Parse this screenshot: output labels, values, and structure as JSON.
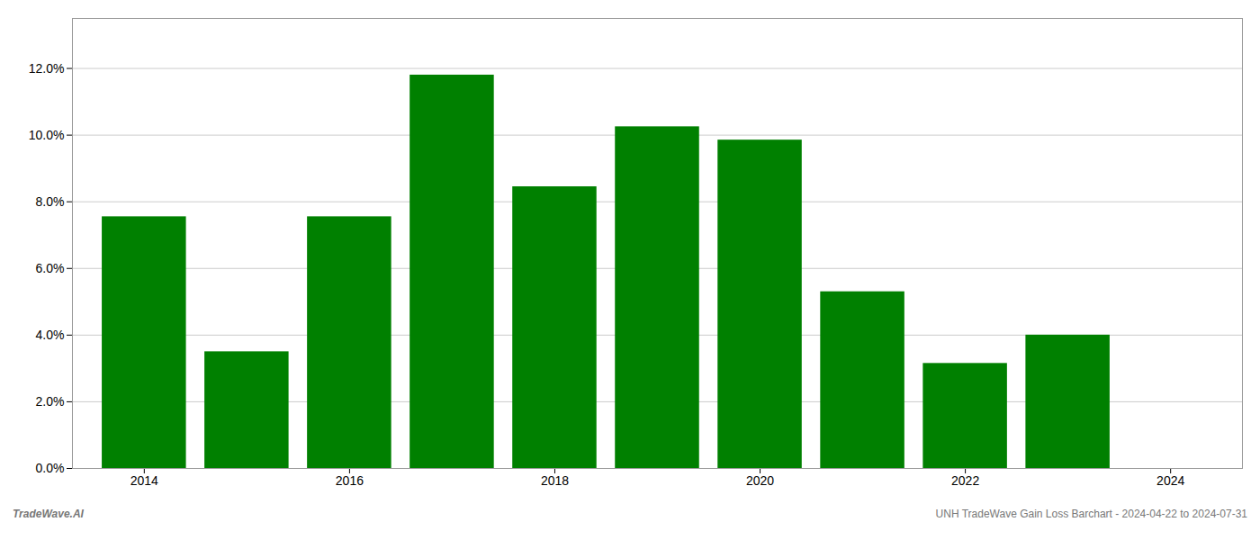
{
  "chart_data": {
    "type": "bar",
    "x": [
      2014,
      2015,
      2016,
      2017,
      2018,
      2019,
      2020,
      2021,
      2022,
      2023
    ],
    "values": [
      0.0755,
      0.035,
      0.0755,
      0.118,
      0.0845,
      0.1025,
      0.0985,
      0.053,
      0.0315,
      0.04
    ],
    "color": "#008000",
    "xlim": [
      2013.3,
      2024.7
    ],
    "xticks": [
      2014,
      2016,
      2018,
      2020,
      2022,
      2024
    ],
    "ylim": [
      0,
      0.135
    ],
    "yticks": [
      {
        "value": 0.0,
        "label": "0.0%"
      },
      {
        "value": 0.02,
        "label": "2.0%"
      },
      {
        "value": 0.04,
        "label": "4.0%"
      },
      {
        "value": 0.06,
        "label": "6.0%"
      },
      {
        "value": 0.08,
        "label": "8.0%"
      },
      {
        "value": 0.1,
        "label": "10.0%"
      },
      {
        "value": 0.12,
        "label": "12.0%"
      }
    ],
    "grid": true,
    "annotations": [
      "TradeWave.AI",
      "UNH TradeWave Gain Loss Barchart - 2024-04-22 to 2024-07-31"
    ]
  }
}
